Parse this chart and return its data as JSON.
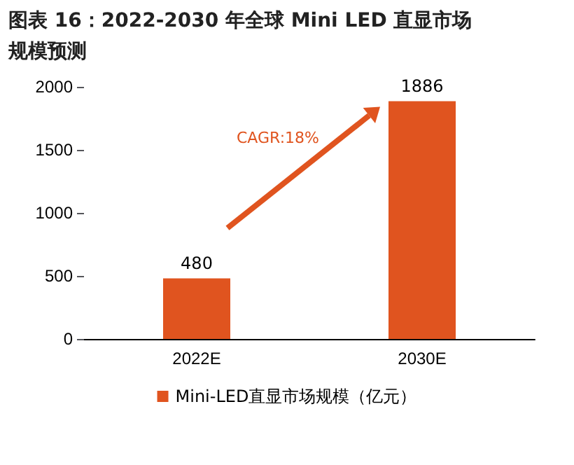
{
  "chart_data": {
    "type": "bar",
    "title": "图表 16：2022-2030 年全球 Mini LED 直显市场规模预测",
    "categories": [
      "2022E",
      "2030E"
    ],
    "series": [
      {
        "name": "Mini-LED直显市场规模（亿元）",
        "color": "#e0541f",
        "values": [
          480,
          1886
        ]
      }
    ],
    "ylim": [
      0,
      2000
    ],
    "yticks": [
      0,
      500,
      1000,
      1500,
      2000
    ],
    "grid": false,
    "legend": "bottom",
    "data_labels": true,
    "annotations": [
      "CAGR:18%"
    ]
  }
}
